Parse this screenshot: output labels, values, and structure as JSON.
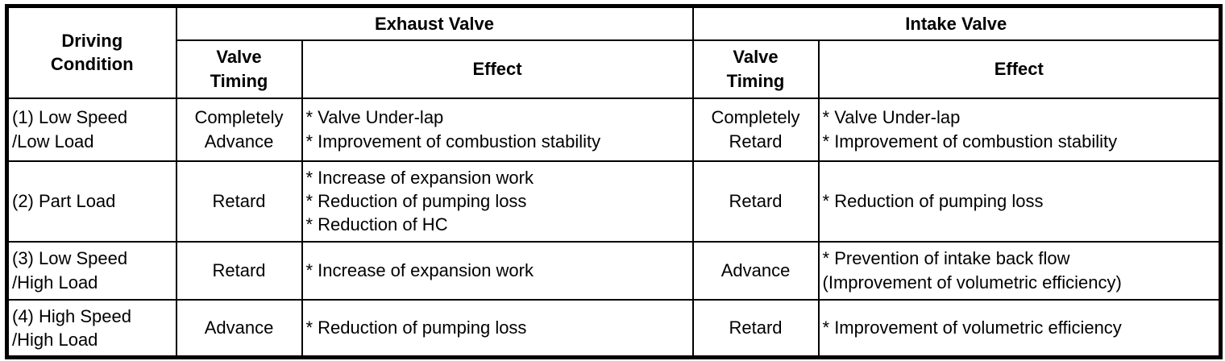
{
  "table": {
    "header": {
      "driving_condition": "Driving\nCondition",
      "exhaust_valve": "Exhaust Valve",
      "intake_valve": "Intake Valve",
      "valve_timing": "Valve\nTiming",
      "effect": "Effect"
    },
    "rows": [
      {
        "condition": "(1) Low Speed\n/Low Load",
        "exhaust_timing": "Completely\nAdvance",
        "exhaust_effect": "* Valve Under-lap\n* Improvement of combustion stability",
        "intake_timing": "Completely\nRetard",
        "intake_effect": "* Valve Under-lap\n* Improvement of combustion stability"
      },
      {
        "condition": "(2) Part Load",
        "exhaust_timing": "Retard",
        "exhaust_effect": "* Increase of expansion work\n* Reduction of pumping loss\n* Reduction of HC",
        "intake_timing": "Retard",
        "intake_effect": "* Reduction of pumping loss"
      },
      {
        "condition": "(3) Low Speed\n/High Load",
        "exhaust_timing": "Retard",
        "exhaust_effect": "* Increase of expansion work",
        "intake_timing": "Advance",
        "intake_effect": "* Prevention of intake back flow\n(Improvement of volumetric efficiency)"
      },
      {
        "condition": "(4) High Speed\n/High Load",
        "exhaust_timing": "Advance",
        "exhaust_effect": "* Reduction of pumping loss",
        "intake_timing": "Retard",
        "intake_effect": "* Improvement of volumetric efficiency"
      }
    ],
    "colors": {
      "border": "#000000",
      "text": "#000000",
      "background": "#ffffff"
    }
  }
}
